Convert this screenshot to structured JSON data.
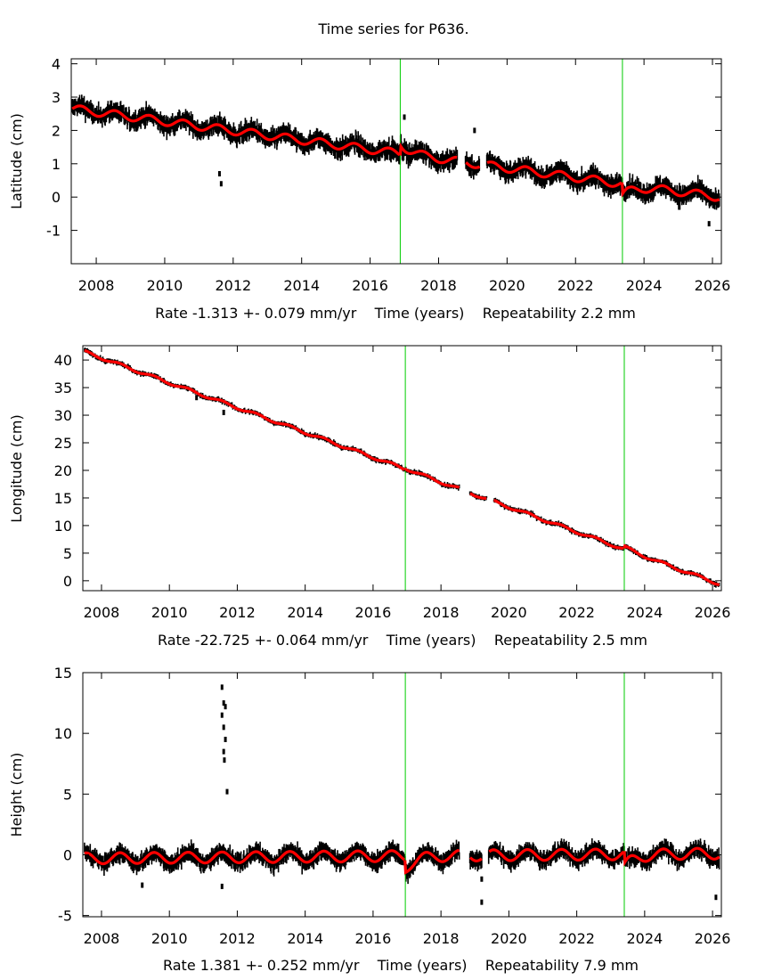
{
  "chart_data": [
    {
      "type": "scatter",
      "title": "Time series for P636.",
      "panel": "latitude",
      "ylabel": "Latitude (cm)",
      "xlabel": "Rate -1.313 +- 0.079 mm/yr    Time (years)    Repeatability 2.2 mm",
      "xlim": [
        2007.27,
        2026.26
      ],
      "ylim": [
        -2.0,
        4.15
      ],
      "xticks": [
        2008,
        2010,
        2012,
        2014,
        2016,
        2018,
        2020,
        2022,
        2024,
        2026
      ],
      "yticks": [
        4,
        3,
        2,
        1,
        0,
        -1
      ],
      "vlines": [
        2016.88,
        2023.37
      ],
      "rate_mm_yr": -1.313,
      "rate_err_mm_yr": 0.079,
      "repeatability_mm": 2.2,
      "gaps": [
        [
          2018.55,
          2018.78
        ],
        [
          2019.2,
          2019.4
        ]
      ],
      "series": [
        {
          "name": "observations",
          "color": "#000000",
          "scatter_cm": 0.22,
          "trend_x": [
            2007.3,
            2026.2
          ],
          "trend_y": [
            2.65,
            0.0
          ]
        },
        {
          "name": "model fit",
          "color": "#ff0000",
          "seasonal_amp": 0.12,
          "offsets": [
            {
              "x": 2016.88,
              "dy": 0.3
            },
            {
              "x": 2023.37,
              "dy": -0.35
            }
          ]
        }
      ],
      "outliers": [
        {
          "x": 2011.65,
          "y": 0.4
        },
        {
          "x": 2011.6,
          "y": 0.7
        },
        {
          "x": 2017.0,
          "y": 2.4
        },
        {
          "x": 2019.05,
          "y": 2.0
        },
        {
          "x": 2025.9,
          "y": -0.8
        }
      ]
    },
    {
      "type": "scatter",
      "panel": "longitude",
      "ylabel": "Longitude (cm)",
      "xlabel": "Rate -22.725 +- 0.064 mm/yr    Time (years)    Repeatability 2.5 mm",
      "xlim": [
        2007.45,
        2026.26
      ],
      "ylim": [
        -1.8,
        42.6
      ],
      "xticks": [
        2008,
        2010,
        2012,
        2014,
        2016,
        2018,
        2020,
        2022,
        2024,
        2026
      ],
      "yticks": [
        40,
        35,
        30,
        25,
        20,
        15,
        10,
        5,
        0
      ],
      "vlines": [
        2016.95,
        2023.4
      ],
      "rate_mm_yr": -22.725,
      "rate_err_mm_yr": 0.064,
      "repeatability_mm": 2.5,
      "gaps": [
        [
          2018.55,
          2018.85
        ],
        [
          2019.35,
          2019.55
        ]
      ],
      "series": [
        {
          "name": "observations",
          "color": "#000000",
          "scatter_cm": 0.35,
          "trend_x": [
            2007.5,
            2026.2
          ],
          "trend_y": [
            41.5,
            -0.6
          ]
        },
        {
          "name": "model fit",
          "color": "#ff0000",
          "seasonal_amp": 0.25,
          "offsets": [
            {
              "x": 2016.95,
              "dy": 0.2
            },
            {
              "x": 2023.4,
              "dy": 0.5
            }
          ]
        }
      ],
      "outliers": [
        {
          "x": 2011.6,
          "y": 30.5
        },
        {
          "x": 2010.8,
          "y": 33.2
        }
      ]
    },
    {
      "type": "scatter",
      "panel": "height",
      "ylabel": "Height (cm)",
      "xlabel": "Rate 1.381 +- 0.252 mm/yr    Time (years)    Repeatability 7.9 mm",
      "xlim": [
        2007.45,
        2026.26
      ],
      "ylim": [
        -5.1,
        15.0
      ],
      "xticks": [
        2008,
        2010,
        2012,
        2014,
        2016,
        2018,
        2020,
        2022,
        2024,
        2026
      ],
      "yticks": [
        15,
        10,
        5,
        0,
        -5
      ],
      "vlines": [
        2016.95,
        2023.4
      ],
      "rate_mm_yr": 1.381,
      "rate_err_mm_yr": 0.252,
      "repeatability_mm": 7.9,
      "gaps": [
        [
          2018.55,
          2018.85
        ],
        [
          2019.2,
          2019.4
        ]
      ],
      "series": [
        {
          "name": "observations",
          "color": "#000000",
          "scatter_cm": 0.55,
          "trend_x": [
            2007.5,
            2026.2
          ],
          "trend_y": [
            -0.3,
            0.1
          ]
        },
        {
          "name": "model fit",
          "color": "#ff0000",
          "seasonal_amp": 0.45,
          "offsets": [
            {
              "x": 2016.95,
              "dy": -1.0
            },
            {
              "x": 2023.4,
              "dy": -1.0
            }
          ]
        }
      ],
      "outliers": [
        {
          "x": 2011.55,
          "y": 13.8
        },
        {
          "x": 2011.6,
          "y": 12.5
        },
        {
          "x": 2011.65,
          "y": 12.2
        },
        {
          "x": 2011.6,
          "y": 10.5
        },
        {
          "x": 2011.65,
          "y": 9.5
        },
        {
          "x": 2011.6,
          "y": 8.5
        },
        {
          "x": 2011.62,
          "y": 7.8
        },
        {
          "x": 2011.7,
          "y": 5.2
        },
        {
          "x": 2011.55,
          "y": 11.5
        },
        {
          "x": 2019.2,
          "y": -3.9
        },
        {
          "x": 2019.2,
          "y": -2.0
        },
        {
          "x": 2026.1,
          "y": -3.5
        },
        {
          "x": 2009.2,
          "y": -2.5
        },
        {
          "x": 2011.55,
          "y": -2.6
        }
      ]
    }
  ]
}
